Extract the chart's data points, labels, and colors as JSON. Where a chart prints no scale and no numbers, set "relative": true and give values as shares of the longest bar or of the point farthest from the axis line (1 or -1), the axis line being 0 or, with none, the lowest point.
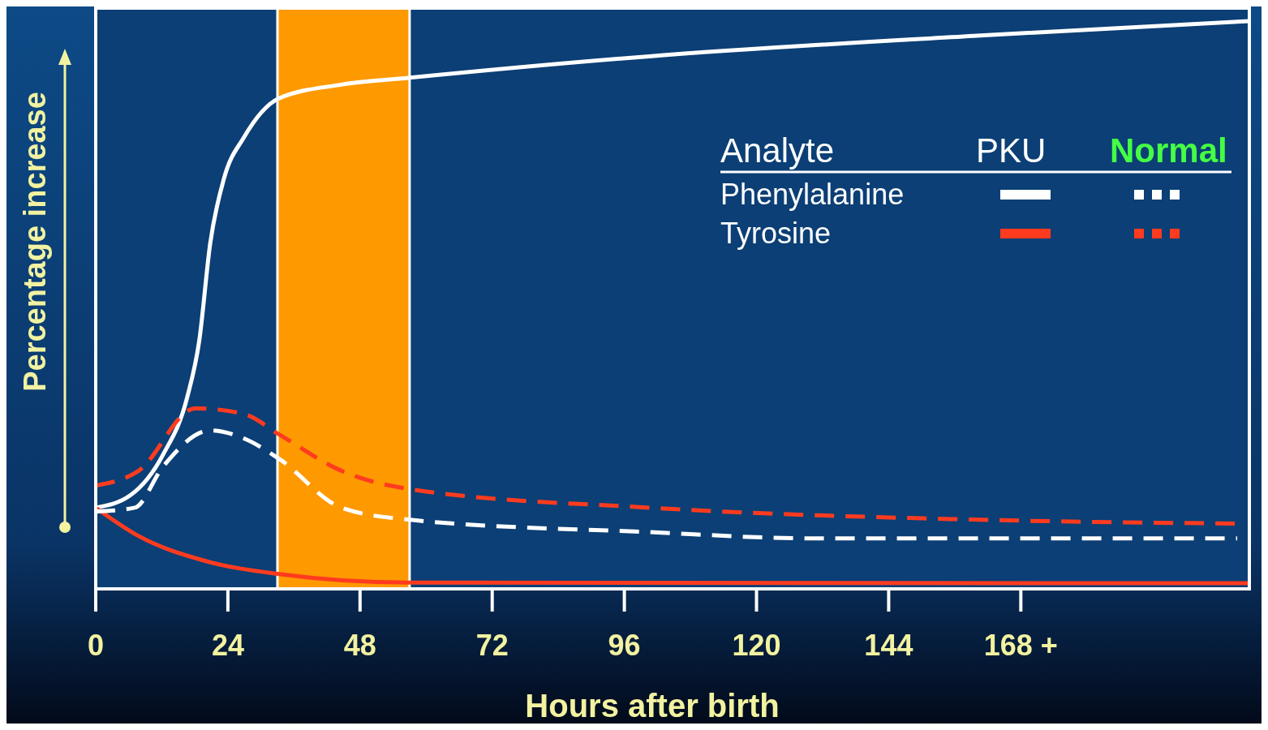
{
  "chart_data": {
    "type": "line",
    "relative": true,
    "xlabel": "Hours after birth",
    "ylabel": "Percentage increase",
    "legend_title": "Analyte",
    "annotations": [
      "PKU",
      "Normal",
      "Phenylalanine",
      "Tyrosine"
    ],
    "grid": false,
    "xlim": [
      0,
      209.5
    ],
    "xticks": [
      0,
      24,
      48,
      72,
      96,
      120,
      144,
      {
        "value": 168,
        "label": "168 +"
      }
    ],
    "bands": [
      {
        "axis": "x",
        "from": 33,
        "to": 57,
        "color": "#ff9900"
      }
    ],
    "series": [
      {
        "color": "#ffffff",
        "line_style": "solid",
        "x": [
          0,
          6.3,
          12.2,
          16.6,
          18.8,
          20.8,
          23.3,
          26.9,
          33.3,
          44.6,
          56.8,
          100.5,
          159.4,
          209.5
        ],
        "values": [
          0.143,
          0.165,
          0.236,
          0.337,
          0.437,
          0.609,
          0.723,
          0.795,
          0.864,
          0.888,
          0.9,
          0.938,
          0.974,
          1
        ]
      },
      {
        "color": "#ff3b1f",
        "line_style": "solid",
        "x": [
          0,
          7.8,
          19.6,
          33.3,
          56.8,
          209.5
        ],
        "values": [
          0.143,
          0.093,
          0.05,
          0.026,
          0.011,
          0.01
        ]
      },
      {
        "color": "#ffffff",
        "line_style": "dashed",
        "x": [
          0,
          7.1,
          12.2,
          20.8,
          26.9,
          33.3,
          44.6,
          56.8,
          100.5,
          130,
          207.3
        ],
        "values": [
          0.136,
          0.143,
          0.215,
          0.279,
          0.265,
          0.229,
          0.143,
          0.122,
          0.1,
          0.089,
          0.089
        ]
      },
      {
        "color": "#ff3b1f",
        "line_style": "dashed",
        "x": [
          0,
          7.8,
          18.1,
          26.9,
          33.3,
          44.6,
          56.8,
          100.5,
          159.4,
          207.3
        ],
        "values": [
          0.182,
          0.208,
          0.318,
          0.308,
          0.272,
          0.208,
          0.176,
          0.143,
          0.122,
          0.115
        ]
      }
    ]
  }
}
